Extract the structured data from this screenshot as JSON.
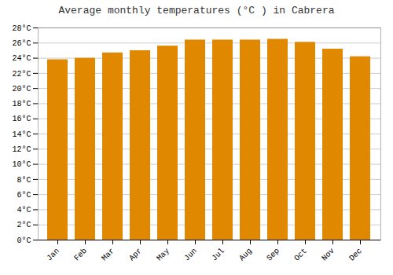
{
  "chart_data": {
    "type": "bar",
    "title": "Average monthly temperatures (°C ) in Cabrera",
    "categories": [
      "Jan",
      "Feb",
      "Mar",
      "Apr",
      "May",
      "Jun",
      "Jul",
      "Aug",
      "Sep",
      "Oct",
      "Nov",
      "Dec"
    ],
    "values": [
      23.8,
      24.0,
      24.7,
      25.0,
      25.6,
      26.4,
      26.4,
      26.4,
      26.5,
      26.1,
      25.2,
      24.2
    ],
    "color": "#E08800",
    "ylim": [
      0,
      28
    ],
    "yticks": [
      {
        "value": 0,
        "label": "0°C"
      },
      {
        "value": 2,
        "label": "2°C"
      },
      {
        "value": 4,
        "label": "4°C"
      },
      {
        "value": 6,
        "label": "6°C"
      },
      {
        "value": 8,
        "label": "8°C"
      },
      {
        "value": 10,
        "label": "10°C"
      },
      {
        "value": 12,
        "label": "12°C"
      },
      {
        "value": 14,
        "label": "14°C"
      },
      {
        "value": 16,
        "label": "16°C"
      },
      {
        "value": 18,
        "label": "18°C"
      },
      {
        "value": 20,
        "label": "20°C"
      },
      {
        "value": 22,
        "label": "22°C"
      },
      {
        "value": 24,
        "label": "24°C"
      },
      {
        "value": 26,
        "label": "26°C"
      },
      {
        "value": 28,
        "label": "28°C"
      }
    ],
    "grid": true
  }
}
